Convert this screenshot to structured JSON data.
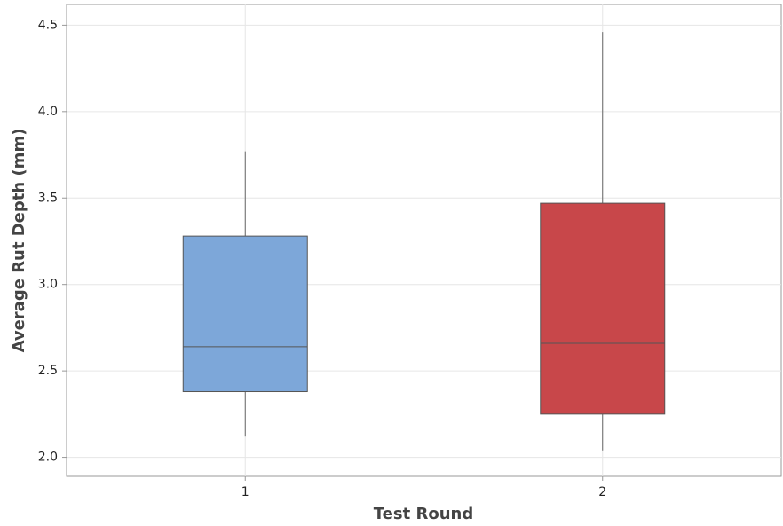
{
  "chart_data": {
    "type": "box",
    "x_label": "Test Round",
    "y_label": "Average Rut Depth (mm)",
    "categories": [
      "1",
      "2"
    ],
    "boxes": [
      {
        "min": 2.12,
        "q1": 2.38,
        "median": 2.64,
        "q3": 3.28,
        "max": 3.77,
        "color": "#7da7d9"
      },
      {
        "min": 2.04,
        "q1": 2.25,
        "median": 2.66,
        "q3": 3.47,
        "max": 4.46,
        "color": "#c8474a"
      }
    ],
    "ylim": [
      1.89,
      4.62
    ],
    "yticks": [
      {
        "value": 2,
        "label": "2.0"
      },
      2.5,
      {
        "value": 3,
        "label": "3.0"
      },
      3.5,
      {
        "value": 4,
        "label": "4.0"
      },
      4.5
    ],
    "grid": true
  }
}
